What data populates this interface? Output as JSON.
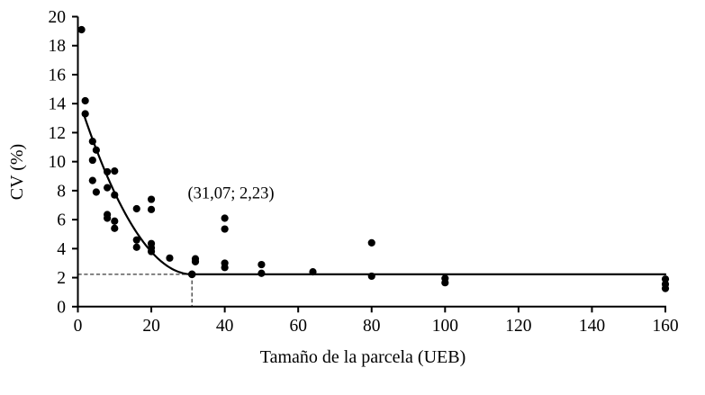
{
  "figure": {
    "background": "#ffffff",
    "ink_color": "#000000",
    "guide_color": "#3a3a3a"
  },
  "chart_data": {
    "type": "scatter",
    "title": "",
    "xlabel": "Tamaño de la parcela (UEB)",
    "ylabel": "CV (%)",
    "xlim": [
      0,
      160
    ],
    "ylim": [
      0,
      20
    ],
    "xticks": [
      0,
      20,
      40,
      60,
      80,
      100,
      120,
      140,
      160
    ],
    "yticks": [
      0,
      2,
      4,
      6,
      8,
      10,
      12,
      14,
      16,
      18,
      20
    ],
    "grid": false,
    "legend": false,
    "points": [
      [
        1,
        19.1
      ],
      [
        2,
        14.2
      ],
      [
        2,
        13.3
      ],
      [
        4,
        11.4
      ],
      [
        4,
        10.1
      ],
      [
        4,
        8.7
      ],
      [
        5,
        10.8
      ],
      [
        5,
        7.9
      ],
      [
        8,
        9.3
      ],
      [
        8,
        8.2
      ],
      [
        8,
        6.35
      ],
      [
        8,
        6.1
      ],
      [
        10,
        9.35
      ],
      [
        10,
        7.7
      ],
      [
        10,
        5.9
      ],
      [
        10,
        5.4
      ],
      [
        16,
        6.75
      ],
      [
        16,
        4.6
      ],
      [
        16,
        4.1
      ],
      [
        20,
        7.4
      ],
      [
        20,
        6.7
      ],
      [
        20,
        4.35
      ],
      [
        20,
        4.05
      ],
      [
        20,
        3.8
      ],
      [
        25,
        3.35
      ],
      [
        32,
        3.3
      ],
      [
        32,
        3.1
      ],
      [
        40,
        6.1
      ],
      [
        40,
        5.35
      ],
      [
        40,
        3.0
      ],
      [
        40,
        2.7
      ],
      [
        50,
        2.9
      ],
      [
        50,
        2.3
      ],
      [
        64,
        2.4
      ],
      [
        80,
        4.4
      ],
      [
        80,
        2.1
      ],
      [
        100,
        1.95
      ],
      [
        100,
        1.65
      ],
      [
        160,
        1.9
      ],
      [
        160,
        1.55
      ],
      [
        160,
        1.25
      ]
    ],
    "optimum_point": {
      "x": 31.07,
      "y": 2.23,
      "label": "(31,07; 2,23)"
    },
    "curve": {
      "model": "quadratic-plateau",
      "plateau": 2.23,
      "coef": 0.0127,
      "x_join": 31.07,
      "x_start": 1.8,
      "x_end": 160
    },
    "dashed_guides": {
      "x": 31.07,
      "y": 2.23
    }
  }
}
